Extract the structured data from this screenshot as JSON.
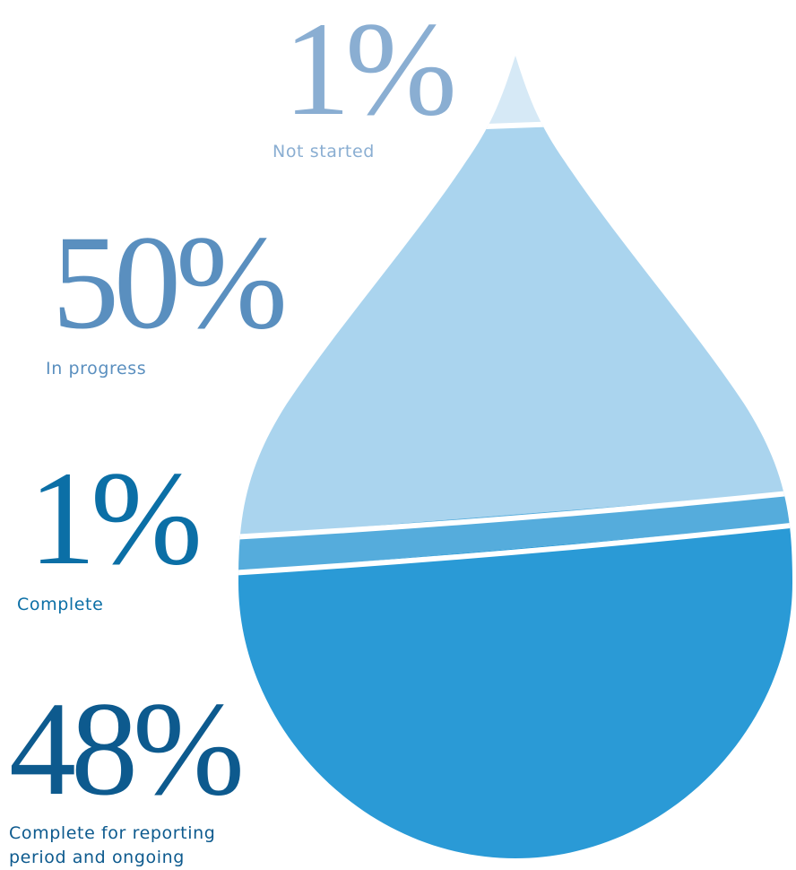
{
  "chart_data": {
    "type": "pie",
    "title": "",
    "categories": [
      "Not started",
      "In progress",
      "Complete",
      "Complete for reporting period and ongoing"
    ],
    "values": [
      1,
      50,
      1,
      48
    ],
    "value_labels": [
      "1%",
      "50%",
      "1%",
      "48%"
    ],
    "unit": "%",
    "stack_order_top_to_bottom": [
      0,
      1,
      2,
      3
    ],
    "label_colors": [
      "#8aaed2",
      "#5a8fbf",
      "#0b6fa6",
      "#0d5a8e"
    ],
    "colors": [
      "#d6e9f6",
      "#aad4ee",
      "#55acdc",
      "#2a9ad6"
    ],
    "legend": "left"
  }
}
